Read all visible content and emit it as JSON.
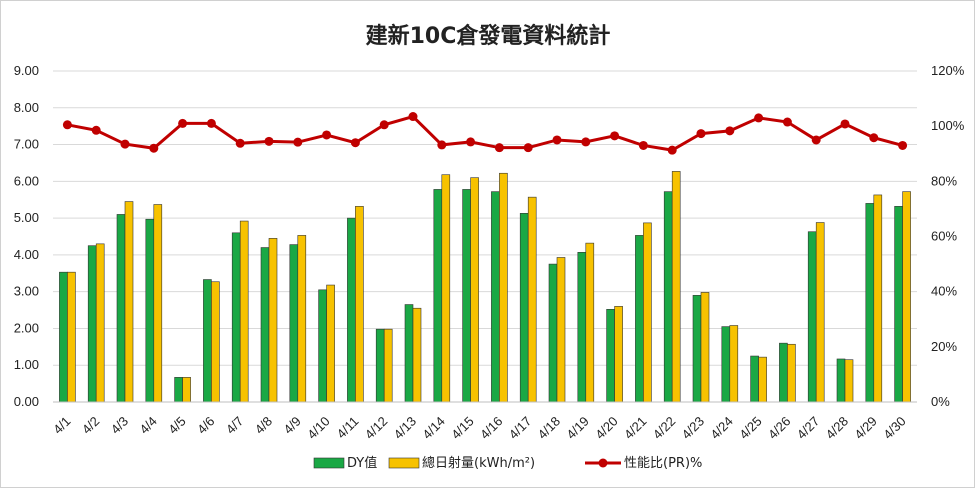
{
  "chart_data": {
    "type": "bar",
    "title": "建新10C倉發電資料統計",
    "categories": [
      "4/1",
      "4/2",
      "4/3",
      "4/4",
      "4/5",
      "4/6",
      "4/7",
      "4/8",
      "4/9",
      "4/10",
      "4/11",
      "4/12",
      "4/13",
      "4/14",
      "4/15",
      "4/16",
      "4/17",
      "4/18",
      "4/19",
      "4/20",
      "4/21",
      "4/22",
      "4/23",
      "4/24",
      "4/25",
      "4/26",
      "4/27",
      "4/28",
      "4/29",
      "4/30"
    ],
    "y_left": {
      "ticks": [
        "0.00",
        "1.00",
        "2.00",
        "3.00",
        "4.00",
        "5.00",
        "6.00",
        "7.00",
        "8.00",
        "9.00"
      ],
      "ylim": [
        0,
        9
      ]
    },
    "y_right": {
      "ticks": [
        "0%",
        "20%",
        "40%",
        "60%",
        "80%",
        "100%",
        "120%"
      ],
      "ylim": [
        0,
        120
      ]
    },
    "grid": true,
    "legend_position": "bottom",
    "series": [
      {
        "name": "DY值",
        "kind": "bar",
        "axis": "left",
        "color": "#1aa845",
        "values": [
          3.53,
          4.25,
          5.1,
          4.97,
          0.67,
          3.33,
          4.6,
          4.2,
          4.28,
          3.05,
          5.0,
          1.98,
          2.65,
          5.78,
          5.78,
          5.72,
          5.13,
          3.75,
          4.07,
          2.52,
          4.53,
          5.72,
          2.9,
          2.05,
          1.25,
          1.6,
          4.63,
          1.17,
          5.4,
          5.32
        ]
      },
      {
        "name": "總日射量(kWh/m²)",
        "kind": "bar",
        "axis": "left",
        "color": "#f7c200",
        "values": [
          3.53,
          4.3,
          5.45,
          5.37,
          0.67,
          3.27,
          4.92,
          4.45,
          4.53,
          3.18,
          5.32,
          1.98,
          2.55,
          6.18,
          6.1,
          6.22,
          5.57,
          3.93,
          4.32,
          2.6,
          4.87,
          6.27,
          2.98,
          2.08,
          1.22,
          1.57,
          4.88,
          1.15,
          5.63,
          5.72
        ]
      },
      {
        "name": "性能比(PR)%",
        "kind": "line",
        "axis": "right",
        "color": "#c00000",
        "values": [
          100.5,
          98.5,
          93.5,
          92.0,
          101.0,
          101.0,
          93.8,
          94.5,
          94.2,
          96.8,
          94.0,
          100.5,
          103.5,
          93.2,
          94.3,
          92.2,
          92.2,
          95.0,
          94.3,
          96.5,
          93.0,
          91.3,
          97.3,
          98.3,
          103.0,
          101.5,
          95.0,
          100.8,
          95.8,
          93.0
        ]
      }
    ]
  }
}
